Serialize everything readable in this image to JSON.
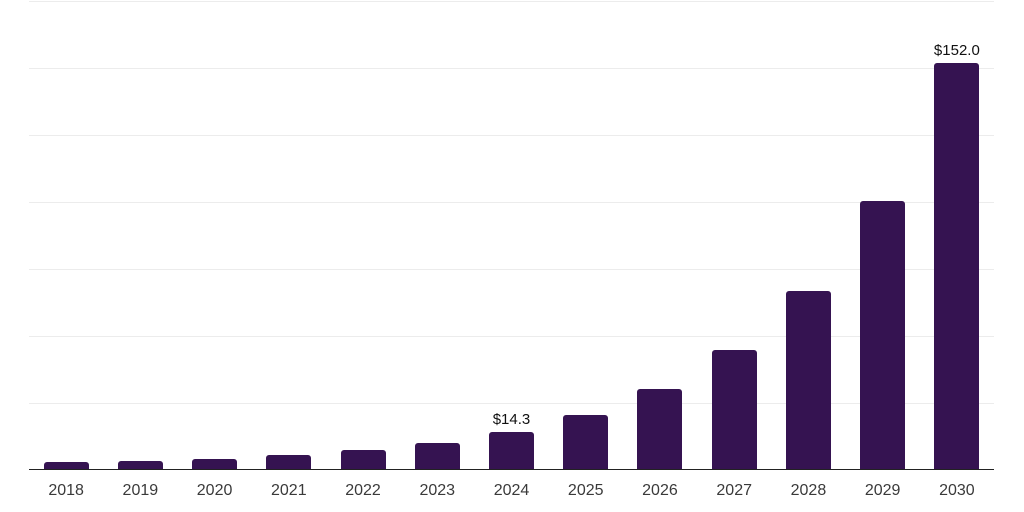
{
  "chart_data": {
    "type": "bar",
    "categories": [
      "2018",
      "2019",
      "2020",
      "2021",
      "2022",
      "2023",
      "2024",
      "2025",
      "2026",
      "2027",
      "2028",
      "2029",
      "2030"
    ],
    "values": [
      2.9,
      3.3,
      4.0,
      5.5,
      7.4,
      9.9,
      14.3,
      20.6,
      30.4,
      44.7,
      66.7,
      100.4,
      152.0
    ],
    "data_labels": [
      {
        "category": "2024",
        "text": "$14.3"
      },
      {
        "category": "2030",
        "text": "$152.0"
      }
    ],
    "ylim": [
      0,
      175
    ],
    "grid_step": 25,
    "grid": "horizontal",
    "y_tick_labels": "none",
    "legend": "none",
    "colors": {
      "bar": "#351351",
      "axis_line": "#222222",
      "gridline": "#ececec",
      "tick_label": "#3a3a3a",
      "data_label": "#111111",
      "background": "#ffffff"
    }
  }
}
